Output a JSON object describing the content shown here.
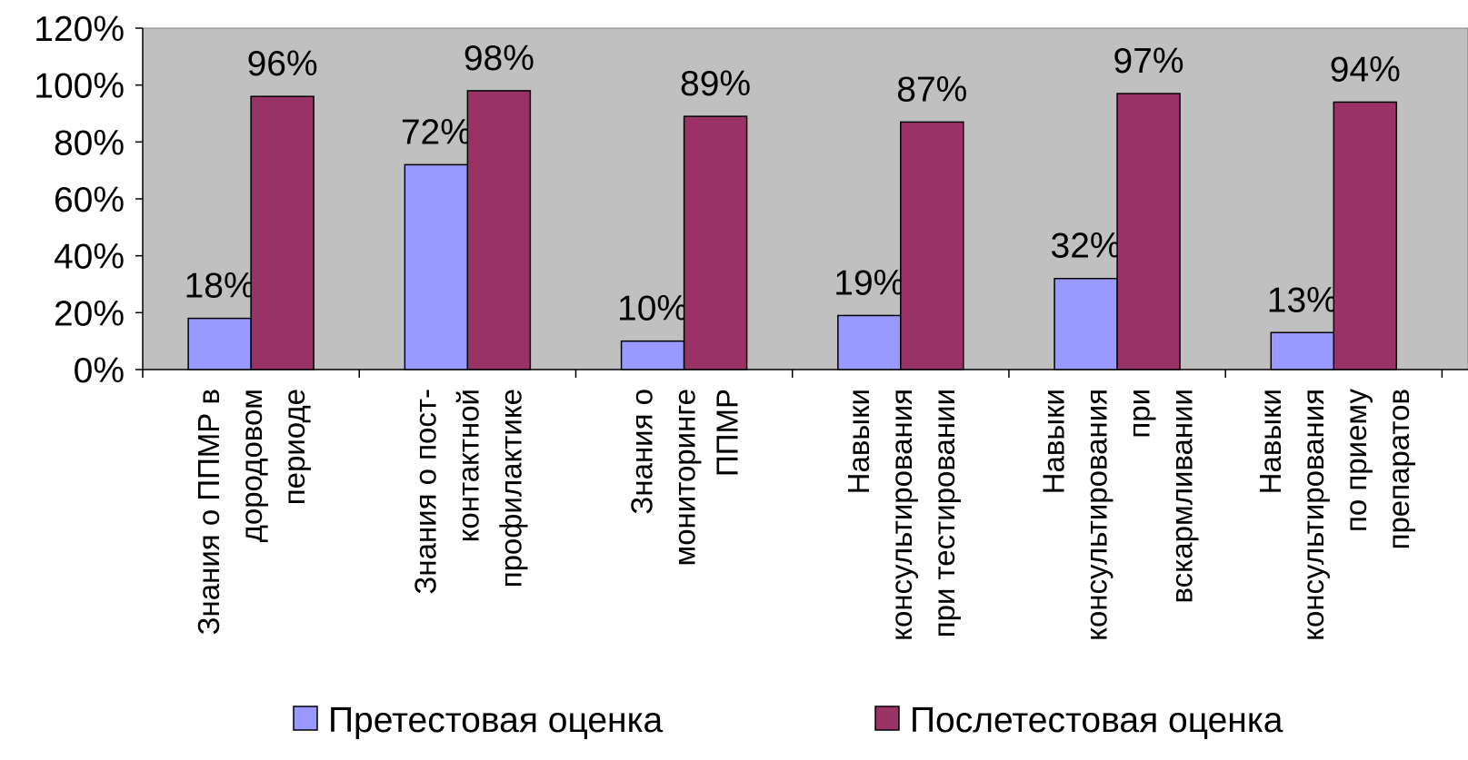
{
  "chart_data": {
    "type": "bar",
    "title": "",
    "xlabel": "",
    "ylabel": "",
    "ylim": [
      0,
      1.2
    ],
    "yticks": [
      {
        "value": 0,
        "label": "0%"
      },
      {
        "value": 0.2,
        "label": "20%"
      },
      {
        "value": 0.4,
        "label": "40%"
      },
      {
        "value": 0.6,
        "label": "60%"
      },
      {
        "value": 0.8,
        "label": "80%"
      },
      {
        "value": 1.0,
        "label": "100%"
      },
      {
        "value": 1.2,
        "label": "120%"
      }
    ],
    "grid": false,
    "plot_background": "#c0c0c0",
    "legend_position": "bottom",
    "categories": [
      [
        "Знания о ППМР в",
        "дородовом",
        "периоде"
      ],
      [
        "Знания о пост-",
        "контактной",
        "профилактике"
      ],
      [
        "Знания о",
        "мониторинге",
        "ППМР"
      ],
      [
        "Навыки",
        "консультирования",
        "при тестировании"
      ],
      [
        "Навыки",
        "консультирования",
        "при",
        "вскармливании"
      ],
      [
        "Навыки",
        "консультирования",
        "по приему",
        "препаратов"
      ]
    ],
    "series": [
      {
        "name": "Претестовая оценка",
        "color": "#9999ff",
        "values": [
          0.18,
          0.72,
          0.1,
          0.19,
          0.32,
          0.13
        ],
        "labels": [
          "18%",
          "72%",
          "10%",
          "19%",
          "32%",
          "13%"
        ]
      },
      {
        "name": "Послетестовая оценка",
        "color": "#993366",
        "values": [
          0.96,
          0.98,
          0.89,
          0.87,
          0.97,
          0.94
        ],
        "labels": [
          "96%",
          "98%",
          "89%",
          "87%",
          "97%",
          "94%"
        ]
      }
    ]
  }
}
